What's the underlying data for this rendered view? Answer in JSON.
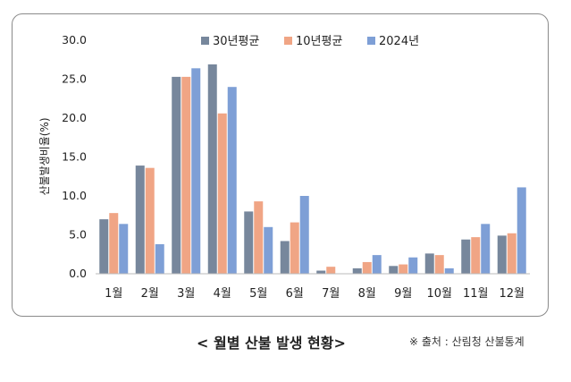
{
  "colors": {
    "series_0": "#77879c",
    "series_1": "#f0a585",
    "series_2": "#7e9fd6"
  },
  "caption": "< 월별 산불 발생 현황>",
  "source": "※ 출처 : 산림청 산불통계",
  "chart_data": {
    "type": "bar",
    "title": "",
    "xlabel": "",
    "ylabel": "산불발생비율(%)",
    "ylim": [
      0,
      30
    ],
    "yticks": [
      "0.0",
      "5.0",
      "10.0",
      "15.0",
      "20.0",
      "25.0",
      "30.0"
    ],
    "legend_position": "top",
    "grid": false,
    "categories": [
      "1월",
      "2월",
      "3월",
      "4월",
      "5월",
      "6월",
      "7월",
      "8월",
      "9월",
      "10월",
      "11월",
      "12월"
    ],
    "series": [
      {
        "name": "30년평균",
        "values": [
          7.0,
          13.9,
          25.3,
          26.9,
          8.0,
          4.2,
          0.4,
          0.7,
          1.0,
          2.6,
          4.4,
          4.9
        ]
      },
      {
        "name": "10년평균",
        "values": [
          7.8,
          13.6,
          25.3,
          20.6,
          9.3,
          6.6,
          0.9,
          1.5,
          1.2,
          2.4,
          4.7,
          5.2
        ]
      },
      {
        "name": "2024년",
        "values": [
          6.4,
          3.8,
          26.4,
          24.0,
          6.0,
          10.0,
          0.0,
          2.4,
          2.1,
          0.7,
          6.4,
          11.1
        ]
      }
    ]
  }
}
